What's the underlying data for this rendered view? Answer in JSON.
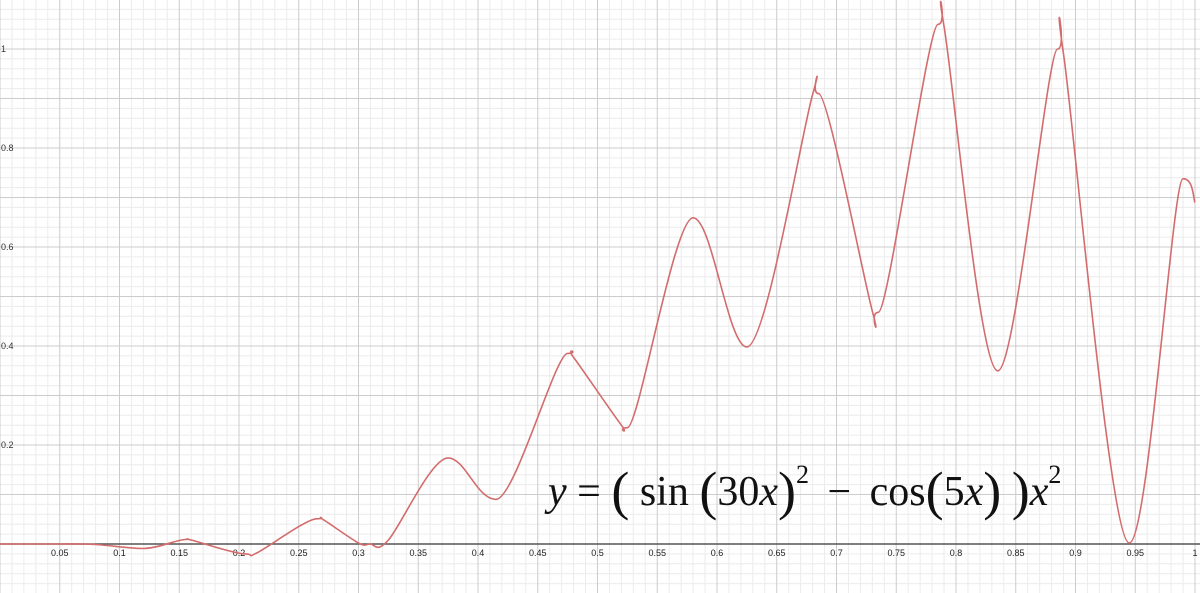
{
  "chart_data": {
    "type": "line",
    "title": "",
    "xlabel": "",
    "ylabel": "",
    "xlim": [
      0.0,
      1.0
    ],
    "ylim": [
      -0.1,
      1.1
    ],
    "grid": true,
    "x_ticks": [
      "0.05",
      "0.1",
      "0.15",
      "0.2",
      "0.25",
      "0.3",
      "0.35",
      "0.4",
      "0.45",
      "0.5",
      "0.55",
      "0.6",
      "0.65",
      "0.7",
      "0.75",
      "0.8",
      "0.85",
      "0.9",
      "0.95",
      "1"
    ],
    "y_ticks": [
      "0.2",
      "0.4",
      "0.6",
      "0.8",
      "1"
    ],
    "series": [
      {
        "x": [
          0.0,
          0.05,
          0.08,
          0.12,
          0.155,
          0.16,
          0.205,
          0.215,
          0.265,
          0.27,
          0.3,
          0.31,
          0.325,
          0.375,
          0.415,
          0.475,
          0.48,
          0.52,
          0.525,
          0.58,
          0.625,
          0.68,
          0.685,
          0.73,
          0.735,
          0.785,
          0.79,
          0.835,
          0.885,
          0.89,
          0.945,
          0.99,
          1.0
        ],
        "y": [
          0.0,
          0.0,
          -0.001,
          -0.009,
          0.009,
          0.008,
          -0.02,
          -0.018,
          0.051,
          0.05,
          0.002,
          0.0,
          0.008,
          0.174,
          0.09,
          0.385,
          0.377,
          0.24,
          0.235,
          0.659,
          0.398,
          0.908,
          0.91,
          0.47,
          0.468,
          1.05,
          1.045,
          0.35,
          1.0,
          0.99,
          0.002,
          0.738,
          0.69
        ],
        "color": "#d36c6c"
      }
    ],
    "annotation": {
      "y_label": "y",
      "equals": "=",
      "lparen": "(",
      "sin_label": "sin",
      "arg1_open": "(",
      "arg1_num": "30",
      "arg1_var": "x",
      "arg1_close": ")",
      "exp1": "2",
      "minus": "−",
      "cos_label": "cos",
      "arg2_open": "(",
      "arg2_num": "5",
      "arg2_var": "x",
      "arg2_close": ")",
      "rparen": ")",
      "tail_var": "x",
      "exp2": "2"
    }
  }
}
